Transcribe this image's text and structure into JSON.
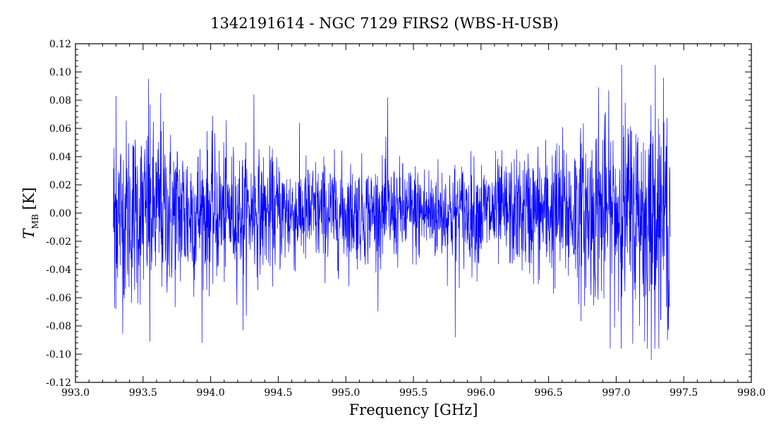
{
  "chart_data": {
    "type": "line",
    "title": "1342191614 - NGC 7129 FIRS2 (WBS-H-USB)",
    "xlabel": "Frequency [GHz]",
    "ylabel_main": "T",
    "ylabel_sub": "MB",
    "ylabel_unit": "[K]",
    "xlim": [
      993.0,
      998.0
    ],
    "ylim": [
      -0.12,
      0.12
    ],
    "x_ticks": [
      "993.0",
      "993.5",
      "994.0",
      "994.5",
      "995.0",
      "995.5",
      "996.0",
      "996.5",
      "997.0",
      "997.5",
      "998.0"
    ],
    "y_ticks": [
      "-0.12",
      "-0.10",
      "-0.08",
      "-0.06",
      "-0.04",
      "-0.02",
      "0.00",
      "0.02",
      "0.04",
      "0.06",
      "0.08",
      "0.10",
      "0.12"
    ],
    "grid": false,
    "series": [
      {
        "color": "#0000ff",
        "x_range": [
          993.28,
          997.4
        ],
        "noise_profile": {
          "freq": [
            993.28,
            993.8,
            994.3,
            995.3,
            996.2,
            996.7,
            997.0,
            997.4
          ],
          "rms": [
            0.035,
            0.03,
            0.022,
            0.018,
            0.02,
            0.03,
            0.036,
            0.04
          ]
        },
        "spikes": [
          {
            "x": 993.3,
            "y": 0.083
          },
          {
            "x": 993.29,
            "y": -0.067
          },
          {
            "x": 993.54,
            "y": 0.095
          },
          {
            "x": 993.55,
            "y": -0.091
          },
          {
            "x": 993.63,
            "y": 0.085
          },
          {
            "x": 994.24,
            "y": -0.083
          },
          {
            "x": 994.32,
            "y": 0.084
          },
          {
            "x": 995.31,
            "y": 0.082
          },
          {
            "x": 995.81,
            "y": -0.088
          },
          {
            "x": 996.87,
            "y": 0.089
          },
          {
            "x": 997.04,
            "y": 0.105
          },
          {
            "x": 997.21,
            "y": -0.091
          },
          {
            "x": 997.26,
            "y": -0.104
          },
          {
            "x": 997.29,
            "y": 0.105
          },
          {
            "x": 997.38,
            "y": -0.09
          }
        ]
      }
    ]
  }
}
